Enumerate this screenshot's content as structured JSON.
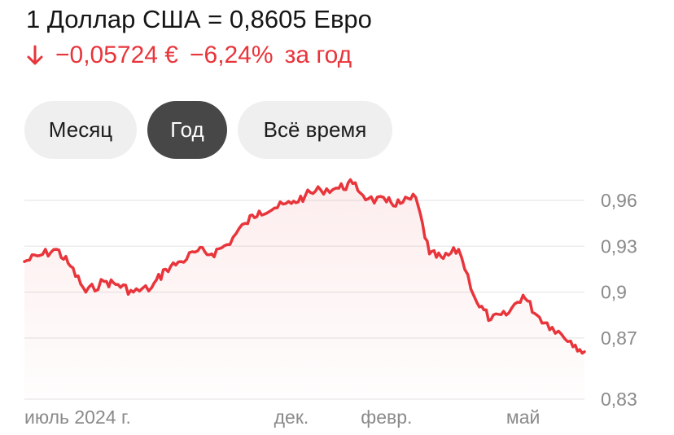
{
  "header": {
    "title": "1 Доллар США = 0,8605 Евро",
    "change_abs": "−0,05724 €",
    "change_pct": "−6,24%",
    "change_period": "за год",
    "change_direction_icon": "arrow-down-icon"
  },
  "periods": [
    {
      "label": "Месяц",
      "active": false
    },
    {
      "label": "Год",
      "active": true
    },
    {
      "label": "Всё время",
      "active": false
    }
  ],
  "colors": {
    "line": "#e8353b",
    "negative": "#e8353b",
    "grid": "#ececec",
    "active_tab": "#474747",
    "tab": "#efefef"
  },
  "chart_data": {
    "type": "line",
    "x": [
      "2024-06-10",
      "2024-06-20",
      "2024-07-01",
      "2024-07-10",
      "2024-07-20",
      "2024-08-01",
      "2024-08-10",
      "2024-08-20",
      "2024-09-01",
      "2024-09-10",
      "2024-09-20",
      "2024-10-01",
      "2024-10-10",
      "2024-10-20",
      "2024-11-01",
      "2024-11-10",
      "2024-11-20",
      "2024-12-01",
      "2024-12-10",
      "2024-12-20",
      "2025-01-01",
      "2025-01-10",
      "2025-01-20",
      "2025-02-01",
      "2025-02-10",
      "2025-02-20",
      "2025-03-01",
      "2025-03-10",
      "2025-03-20",
      "2025-04-01",
      "2025-04-10",
      "2025-04-20",
      "2025-05-01",
      "2025-05-10",
      "2025-05-20",
      "2025-06-01",
      "2025-06-10"
    ],
    "values": [
      0.92,
      0.924,
      0.928,
      0.917,
      0.9,
      0.907,
      0.905,
      0.9,
      0.903,
      0.915,
      0.92,
      0.927,
      0.925,
      0.931,
      0.945,
      0.953,
      0.955,
      0.958,
      0.963,
      0.967,
      0.968,
      0.971,
      0.961,
      0.959,
      0.958,
      0.962,
      0.925,
      0.922,
      0.928,
      0.893,
      0.882,
      0.885,
      0.898,
      0.885,
      0.877,
      0.868,
      0.861
    ],
    "x_tick_labels": [
      "июль 2024 г.",
      "дек.",
      "февр.",
      "май"
    ],
    "x_ticks": [
      "2024-07-01",
      "2024-12-01",
      "2025-02-01",
      "2025-05-01"
    ],
    "y_tick_labels": [
      "0,96",
      "0,93",
      "0,9",
      "0,87",
      "0,83"
    ],
    "y_ticks": [
      0.96,
      0.93,
      0.9,
      0.87,
      0.83
    ],
    "ylim": [
      0.83,
      0.97
    ],
    "grid": true,
    "area_fill": true
  }
}
